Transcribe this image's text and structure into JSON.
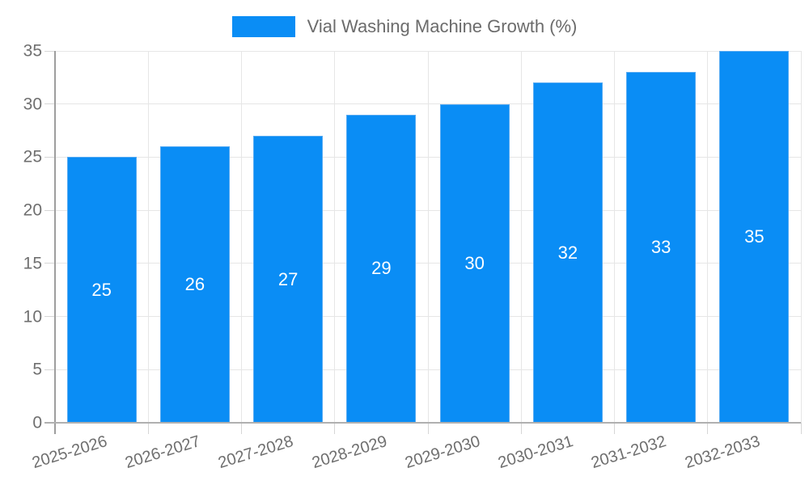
{
  "chart_data": {
    "type": "bar",
    "title": "",
    "xlabel": "",
    "ylabel": "",
    "legend": {
      "position": "top",
      "label": "Vial Washing Machine Growth (%)"
    },
    "categories": [
      "2025-2026",
      "2026-2027",
      "2027-2028",
      "2028-2029",
      "2029-2030",
      "2030-2031",
      "2031-2032",
      "2032-2033"
    ],
    "values": [
      25,
      26,
      27,
      29,
      30,
      32,
      33,
      35
    ],
    "yticks": [
      0,
      5,
      10,
      15,
      20,
      25,
      30,
      35
    ],
    "ylim": [
      0,
      35
    ],
    "grid": true,
    "bar_value_labels_inside": true,
    "x_tick_rotation_deg": -17,
    "colors": {
      "bar": "#0a8df5",
      "bar_border": "#56aaf2",
      "bar_label": "#ffffff",
      "grid": "#e6e6e6",
      "axis_y": "#9e9e9e",
      "axis_x": "#b0b0b0",
      "tick": "#d6d6d6",
      "tick_text": "#6f6f6f",
      "legend_text": "#6b6b6b"
    }
  }
}
